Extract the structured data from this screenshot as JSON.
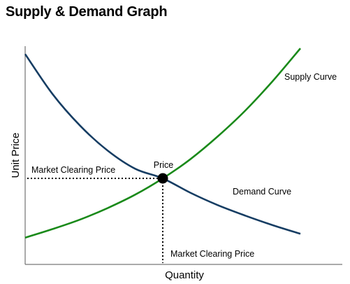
{
  "chart_data": {
    "type": "line",
    "title": "Supply & Demand Graph",
    "xlabel": "Quantity",
    "ylabel": "Unit Price",
    "grid": false,
    "series": [
      {
        "name": "Supply Curve",
        "color": "#1a8a1a",
        "x": [
          0,
          1,
          2,
          3,
          4,
          5,
          6,
          7,
          8,
          9,
          10
        ],
        "y": [
          1.4,
          1.85,
          2.35,
          2.95,
          3.65,
          4.5,
          5.5,
          6.7,
          8.05,
          9.6,
          11.3
        ]
      },
      {
        "name": "Demand Curve",
        "color": "#163d63",
        "x": [
          0,
          1,
          2,
          3,
          4,
          5,
          6,
          7,
          8,
          9,
          10
        ],
        "y": [
          11.0,
          8.9,
          7.25,
          5.95,
          5.0,
          4.5,
          3.75,
          3.1,
          2.55,
          2.05,
          1.6
        ]
      }
    ],
    "equilibrium": {
      "x": 5,
      "y": 4.5,
      "label": "Price"
    },
    "annotations": {
      "price_guide": "Market Clearing Price",
      "quantity_guide": "Market Clearing Price"
    }
  }
}
